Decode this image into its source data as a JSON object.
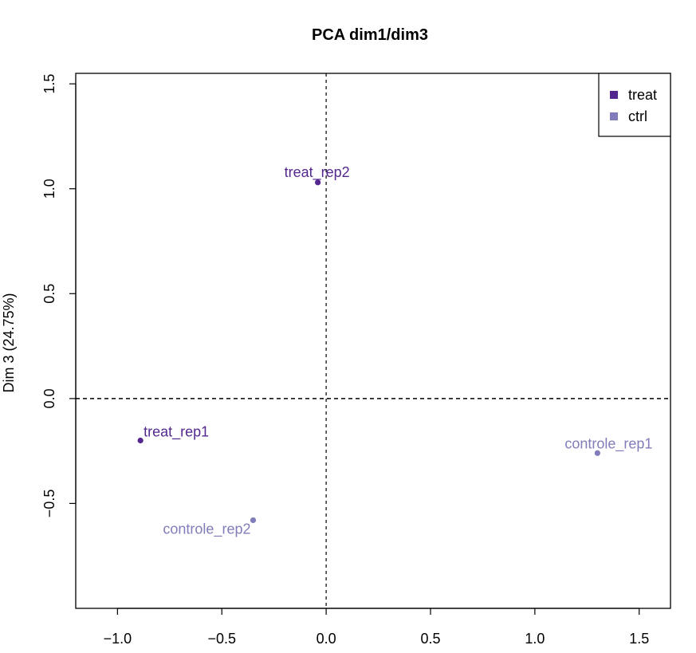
{
  "chart_data": {
    "type": "scatter",
    "title": "PCA dim1/dim3",
    "xlabel": "",
    "ylabel": "Dim 3 (24.75%)",
    "xlim": [
      -1.2,
      1.65
    ],
    "ylim": [
      -1.0,
      1.55
    ],
    "xticks": [
      -1.0,
      -0.5,
      0.0,
      0.5,
      1.0,
      1.5
    ],
    "xtick_labels": [
      "−1.0",
      "−0.5",
      "0.0",
      "0.5",
      "1.0",
      "1.5"
    ],
    "yticks": [
      -0.5,
      0.0,
      0.5,
      1.0,
      1.5
    ],
    "ytick_labels": [
      "−0.5",
      "0.0",
      "0.5",
      "1.0",
      "1.5"
    ],
    "grid": false,
    "reference_lines": {
      "x": 0,
      "y": 0,
      "style": "dashed"
    },
    "legend": {
      "position": "top-right",
      "entries": [
        {
          "name": "treat",
          "color": "#54278f"
        },
        {
          "name": "ctrl",
          "color": "#807dba"
        }
      ]
    },
    "series": [
      {
        "name": "treat",
        "color": "#54278f",
        "points": [
          {
            "label": "treat_rep1",
            "x": -0.89,
            "y": -0.2
          },
          {
            "label": "treat_rep2",
            "x": -0.04,
            "y": 1.03
          }
        ]
      },
      {
        "name": "ctrl",
        "color": "#807dba",
        "points": [
          {
            "label": "controle_rep1",
            "x": 1.3,
            "y": -0.26
          },
          {
            "label": "controle_rep2",
            "x": -0.35,
            "y": -0.58
          }
        ]
      }
    ]
  }
}
